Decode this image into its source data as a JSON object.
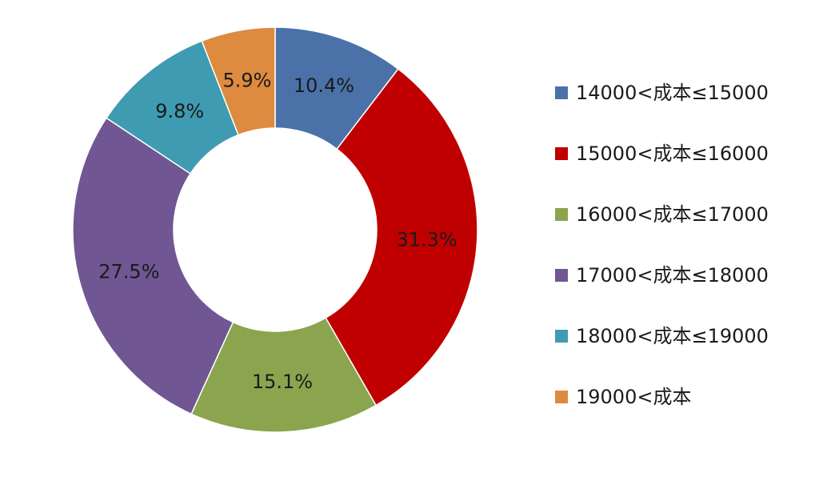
{
  "chart_data": {
    "type": "pie",
    "donut": true,
    "categories": [
      "14000<成本≤15000",
      "15000<成本≤16000",
      "16000<成本≤17000",
      "17000<成本≤18000",
      "18000<成本≤19000",
      "19000<成本"
    ],
    "values": [
      10.4,
      31.3,
      15.1,
      27.5,
      9.8,
      5.9
    ],
    "labels": [
      "10.4%",
      "31.3%",
      "15.1%",
      "27.5%",
      "9.8%",
      "5.9%"
    ],
    "colors": [
      "#4a72a8",
      "#c00000",
      "#8aa54e",
      "#705692",
      "#3f9bb1",
      "#de8a3f"
    ],
    "legend_position": "right",
    "start_angle": "top",
    "direction": "clockwise"
  }
}
